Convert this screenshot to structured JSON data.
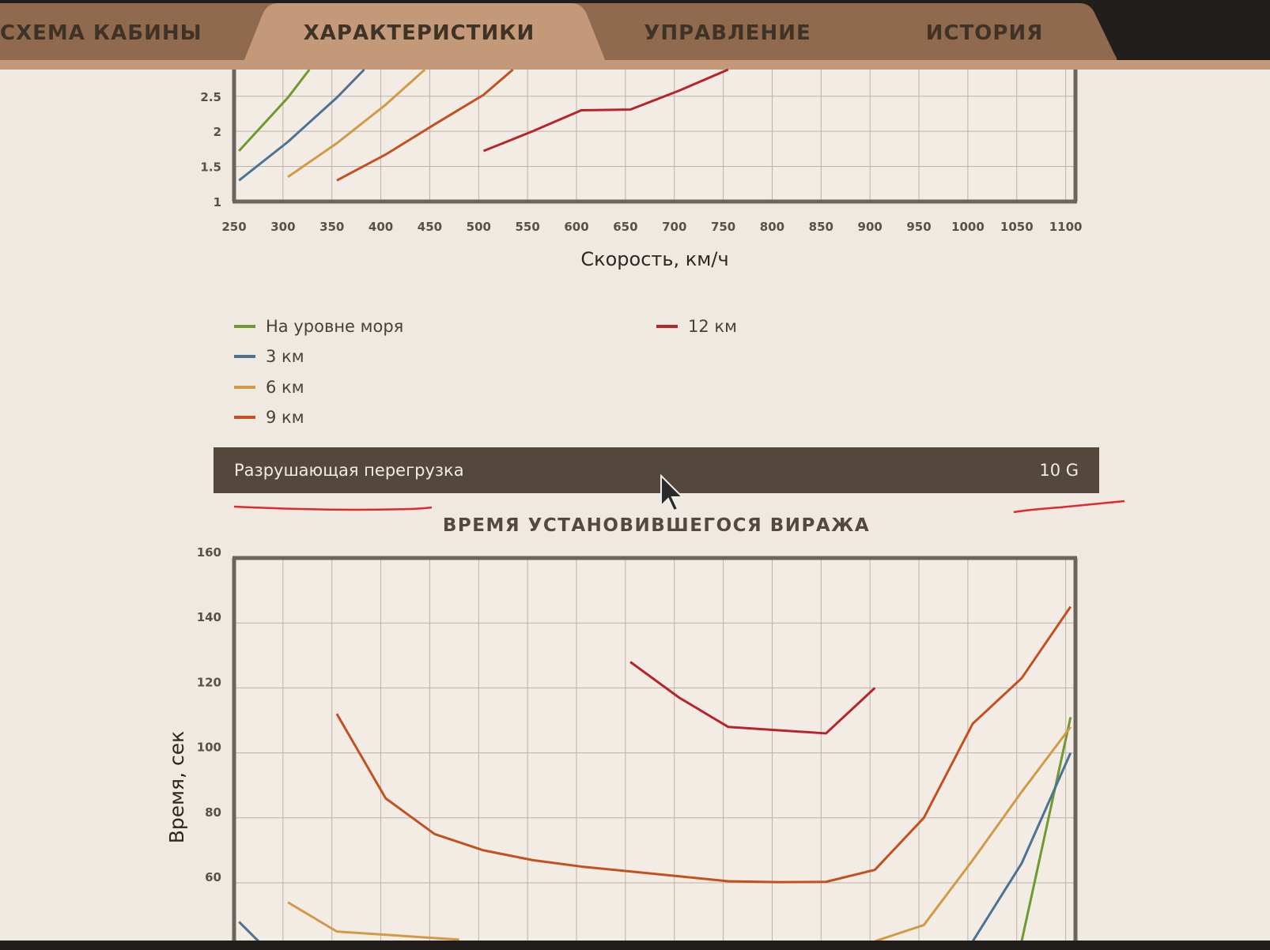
{
  "tabs": [
    {
      "label": "СХЕМА КАБИНЫ",
      "active": false
    },
    {
      "label": "ХАРАКТЕРИСТИКИ",
      "active": true
    },
    {
      "label": "УПРАВЛЕНИЕ",
      "active": false
    },
    {
      "label": "ИСТОРИЯ",
      "active": false
    }
  ],
  "colors": {
    "sea_level": "#6e9a2e",
    "km3": "#4a7394",
    "km6": "#d39a45",
    "km9": "#c5501f",
    "km12": "#b7252a",
    "tab_active": "#c4997a",
    "tab_inactive": "#8f6a4f",
    "frame": "#6b655d",
    "grid": "#b8b2aa",
    "annotation": "#e1282b"
  },
  "chart_data": [
    {
      "type": "line",
      "title": "",
      "xlabel": "Скорость, км/ч",
      "ylabel": "",
      "x_ticks": [
        250,
        300,
        350,
        400,
        450,
        500,
        550,
        600,
        650,
        700,
        750,
        800,
        850,
        900,
        950,
        1000,
        1050,
        1100
      ],
      "y_ticks": [
        "1",
        "1.5",
        "2",
        "2.5"
      ],
      "xlim": [
        250,
        1110
      ],
      "ylim": [
        1,
        2.88
      ],
      "grid": true,
      "series": [
        {
          "name": "На уровне моря",
          "color_key": "sea_level",
          "points": [
            [
              255,
              1.72
            ],
            [
              305,
              2.48
            ],
            [
              327,
              2.88
            ]
          ]
        },
        {
          "name": "3 км",
          "color_key": "km3",
          "points": [
            [
              255,
              1.3
            ],
            [
              305,
              1.85
            ],
            [
              355,
              2.48
            ],
            [
              383,
              2.88
            ]
          ]
        },
        {
          "name": "6 км",
          "color_key": "km6",
          "points": [
            [
              305,
              1.35
            ],
            [
              355,
              1.83
            ],
            [
              405,
              2.38
            ],
            [
              445,
              2.88
            ]
          ]
        },
        {
          "name": "9 км",
          "color_key": "km9",
          "points": [
            [
              355,
              1.3
            ],
            [
              405,
              1.67
            ],
            [
              455,
              2.1
            ],
            [
              505,
              2.52
            ],
            [
              535,
              2.88
            ]
          ]
        },
        {
          "name": "12 км",
          "color_key": "km12",
          "points": [
            [
              505,
              1.72
            ],
            [
              555,
              2.0
            ],
            [
              605,
              2.3
            ],
            [
              655,
              2.31
            ],
            [
              705,
              2.58
            ],
            [
              755,
              2.88
            ]
          ]
        }
      ]
    },
    {
      "type": "line",
      "title": "ВРЕМЯ УСТАНОВИВШЕГОСЯ ВИРАЖА",
      "xlabel": "",
      "ylabel": "Время, сек",
      "y_ticks": [
        60,
        80,
        100,
        120,
        140,
        160
      ],
      "xlim": [
        250,
        1110
      ],
      "ylim": [
        42,
        160
      ],
      "grid": true,
      "series": [
        {
          "name": "На уровне моря",
          "color_key": "sea_level",
          "points": [
            [
              1055,
              42
            ],
            [
              1105,
              111
            ]
          ]
        },
        {
          "name": "3 км",
          "color_key": "km3",
          "points": [
            [
              255,
              48
            ],
            [
              275,
              42
            ]
          ],
          "points_b": [
            [
              1005,
              42
            ],
            [
              1055,
              66
            ],
            [
              1105,
              100
            ]
          ]
        },
        {
          "name": "6 км",
          "color_key": "km6",
          "points": [
            [
              305,
              54
            ],
            [
              355,
              45
            ],
            [
              405,
              44
            ],
            [
              455,
              43
            ],
            [
              480,
              42.5
            ]
          ],
          "points_b": [
            [
              905,
              42
            ],
            [
              955,
              47
            ],
            [
              1005,
              67
            ],
            [
              1055,
              88
            ],
            [
              1105,
              108
            ]
          ]
        },
        {
          "name": "9 км",
          "color_key": "km9",
          "points": [
            [
              355,
              112
            ],
            [
              405,
              86
            ],
            [
              455,
              75
            ],
            [
              505,
              70
            ],
            [
              555,
              67
            ],
            [
              605,
              65
            ],
            [
              655,
              63.5
            ],
            [
              705,
              62
            ],
            [
              755,
              60.5
            ],
            [
              805,
              60.2
            ],
            [
              855,
              60.3
            ],
            [
              905,
              64
            ],
            [
              955,
              80
            ],
            [
              1005,
              109
            ],
            [
              1055,
              123
            ],
            [
              1105,
              145
            ]
          ]
        },
        {
          "name": "12 км",
          "color_key": "km12",
          "points": [
            [
              655,
              128
            ],
            [
              705,
              117
            ],
            [
              755,
              108
            ],
            [
              805,
              107
            ],
            [
              855,
              106
            ],
            [
              905,
              120
            ]
          ]
        }
      ]
    }
  ],
  "legend": [
    {
      "label": "На уровне моря",
      "color_key": "sea_level"
    },
    {
      "label": "3 км",
      "color_key": "km3"
    },
    {
      "label": "6 км",
      "color_key": "km6"
    },
    {
      "label": "9 км",
      "color_key": "km9"
    },
    {
      "label": "12 км",
      "color_key": "km12"
    }
  ],
  "ultimate_load": {
    "label": "Разрушающая перегрузка",
    "value": "10 G"
  },
  "cursor": "arrow-pointer-icon"
}
